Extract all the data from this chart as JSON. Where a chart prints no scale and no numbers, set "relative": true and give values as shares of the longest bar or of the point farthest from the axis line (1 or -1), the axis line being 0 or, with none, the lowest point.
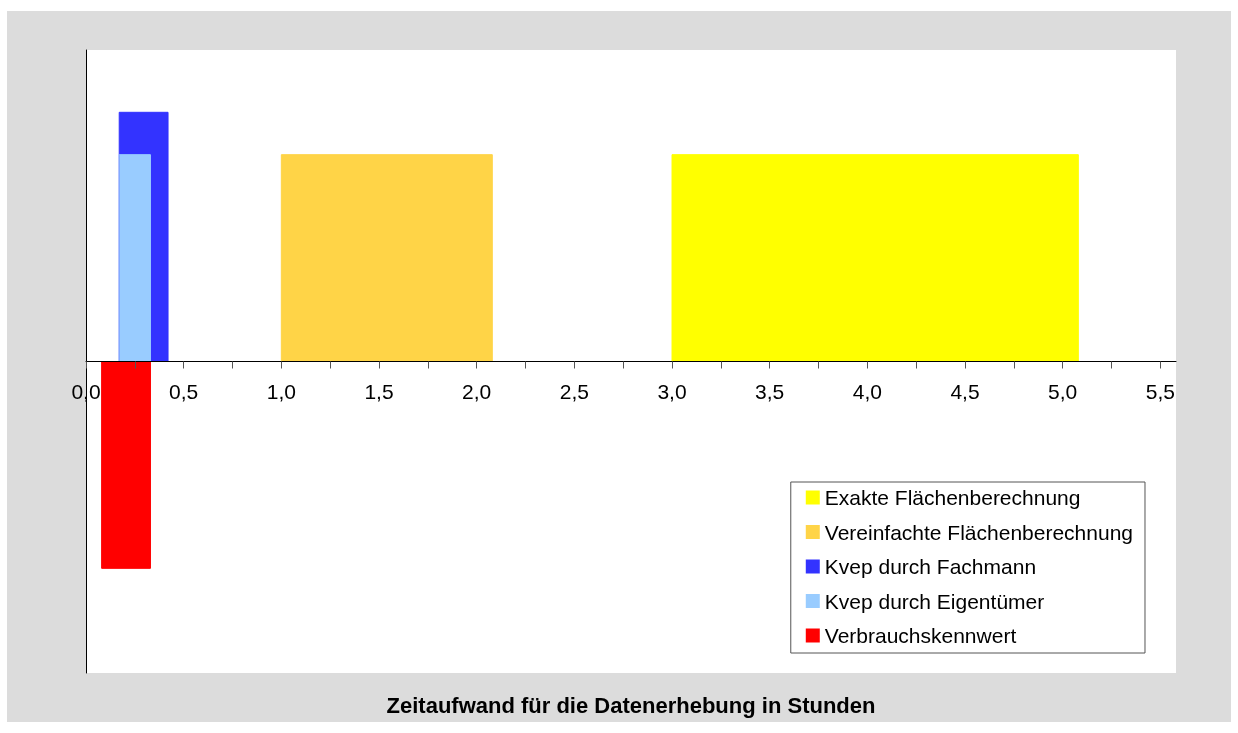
{
  "chart_data": {
    "type": "area",
    "relative": true,
    "annotations": [
      "Zeitaufwand für die Datenerhebung in Stunden"
    ],
    "xlim": [
      0,
      5.58
    ],
    "xticks": [
      {
        "value": 0,
        "label": "0,0"
      },
      {
        "value": 0.25,
        "label": null
      },
      {
        "value": 0.5,
        "label": "0,5"
      },
      {
        "value": 0.75,
        "label": null
      },
      {
        "value": 1,
        "label": "1,0"
      },
      {
        "value": 1.25,
        "label": null
      },
      {
        "value": 1.5,
        "label": "1,5"
      },
      {
        "value": 1.75,
        "label": null
      },
      {
        "value": 2,
        "label": "2,0"
      },
      {
        "value": 2.25,
        "label": null
      },
      {
        "value": 2.5,
        "label": "2,5"
      },
      {
        "value": 2.75,
        "label": null
      },
      {
        "value": 3,
        "label": "3,0"
      },
      {
        "value": 3.25,
        "label": null
      },
      {
        "value": 3.5,
        "label": "3,5"
      },
      {
        "value": 3.75,
        "label": null
      },
      {
        "value": 4,
        "label": "4,0"
      },
      {
        "value": 4.25,
        "label": null
      },
      {
        "value": 4.5,
        "label": "4,5"
      },
      {
        "value": 4.75,
        "label": null
      },
      {
        "value": 5,
        "label": "5,0"
      },
      {
        "value": 5.25,
        "label": null
      },
      {
        "value": 5.5,
        "label": "5,5"
      }
    ],
    "legend": "bottom right",
    "series": [
      {
        "name": "Exakte Flächenberechnung",
        "color": "#ffff00",
        "x": [
          3.0,
          3.0,
          5.08,
          5.08
        ],
        "values": [
          0,
          0.83,
          0.83,
          0
        ]
      },
      {
        "name": "Vereinfachte Flächenberechnung",
        "color": "#ffd447",
        "x": [
          1.0,
          1.0,
          2.08,
          2.08
        ],
        "values": [
          0,
          0.83,
          0.83,
          0
        ]
      },
      {
        "name": "Kvep durch Fachmann",
        "color": "#3333ff",
        "x": [
          0.17,
          0.17,
          0.42,
          0.42
        ],
        "values": [
          0,
          1,
          1,
          0
        ]
      },
      {
        "name": "Kvep durch Eigentümer",
        "color": "#99ccff",
        "x": [
          0.17,
          0.17,
          0.33,
          0.33
        ],
        "values": [
          0,
          0.83,
          0.83,
          0
        ]
      },
      {
        "name": "Verbrauchskennwert",
        "color": "#ff0000",
        "x": [
          0.08,
          0.08,
          0.33,
          0.33
        ],
        "values": [
          0,
          -0.83,
          -0.83,
          0
        ]
      }
    ]
  }
}
